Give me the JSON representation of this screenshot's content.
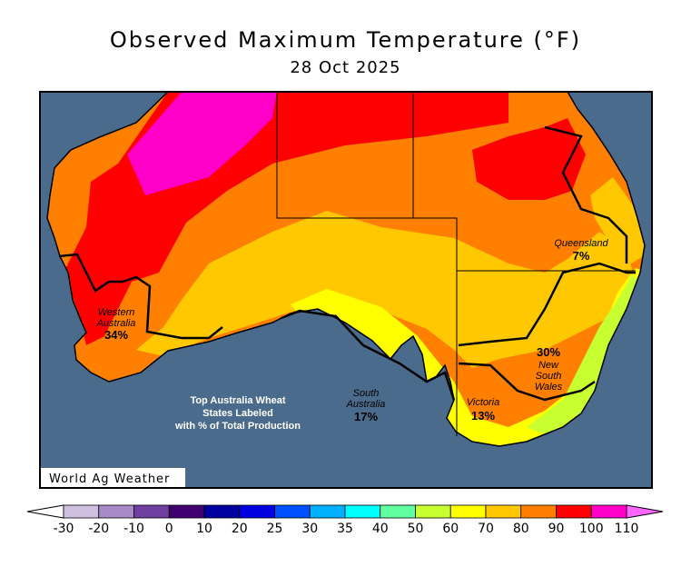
{
  "title": "Observed Maximum Temperature (°F)",
  "subtitle": "28 Oct 2025",
  "credit": "World Ag Weather",
  "note": [
    "Top Australia Wheat",
    "States Labeled",
    "with % of Total Production"
  ],
  "states": [
    {
      "name_lines": [
        "Western",
        "Australia"
      ],
      "pct": "34%"
    },
    {
      "name_lines": [
        "South",
        "Australia"
      ],
      "pct": "17%"
    },
    {
      "name_lines": [
        "Victoria"
      ],
      "pct": "13%"
    },
    {
      "name_lines": [
        "New",
        "South",
        "Wales"
      ],
      "pct": "30%"
    },
    {
      "name_lines": [
        "Queensland"
      ],
      "pct": "7%"
    }
  ],
  "colors": {
    "ocean": "#4a6b8b",
    "below": "#ffffff",
    "above": "#ff66ff"
  },
  "legend": {
    "ticks": [
      "-30",
      "-20",
      "-10",
      "0",
      "10",
      "20",
      "25",
      "30",
      "35",
      "40",
      "50",
      "60",
      "70",
      "80",
      "90",
      "100",
      "110"
    ],
    "bins": [
      "#d0c0e0",
      "#a88ac8",
      "#7040a0",
      "#400070",
      "#0000a0",
      "#0000e0",
      "#0050ff",
      "#00b0ff",
      "#00ffff",
      "#60ffa0",
      "#c8ff30",
      "#ffff00",
      "#ffc800",
      "#ff8000",
      "#ff0000",
      "#ff00c8"
    ]
  }
}
